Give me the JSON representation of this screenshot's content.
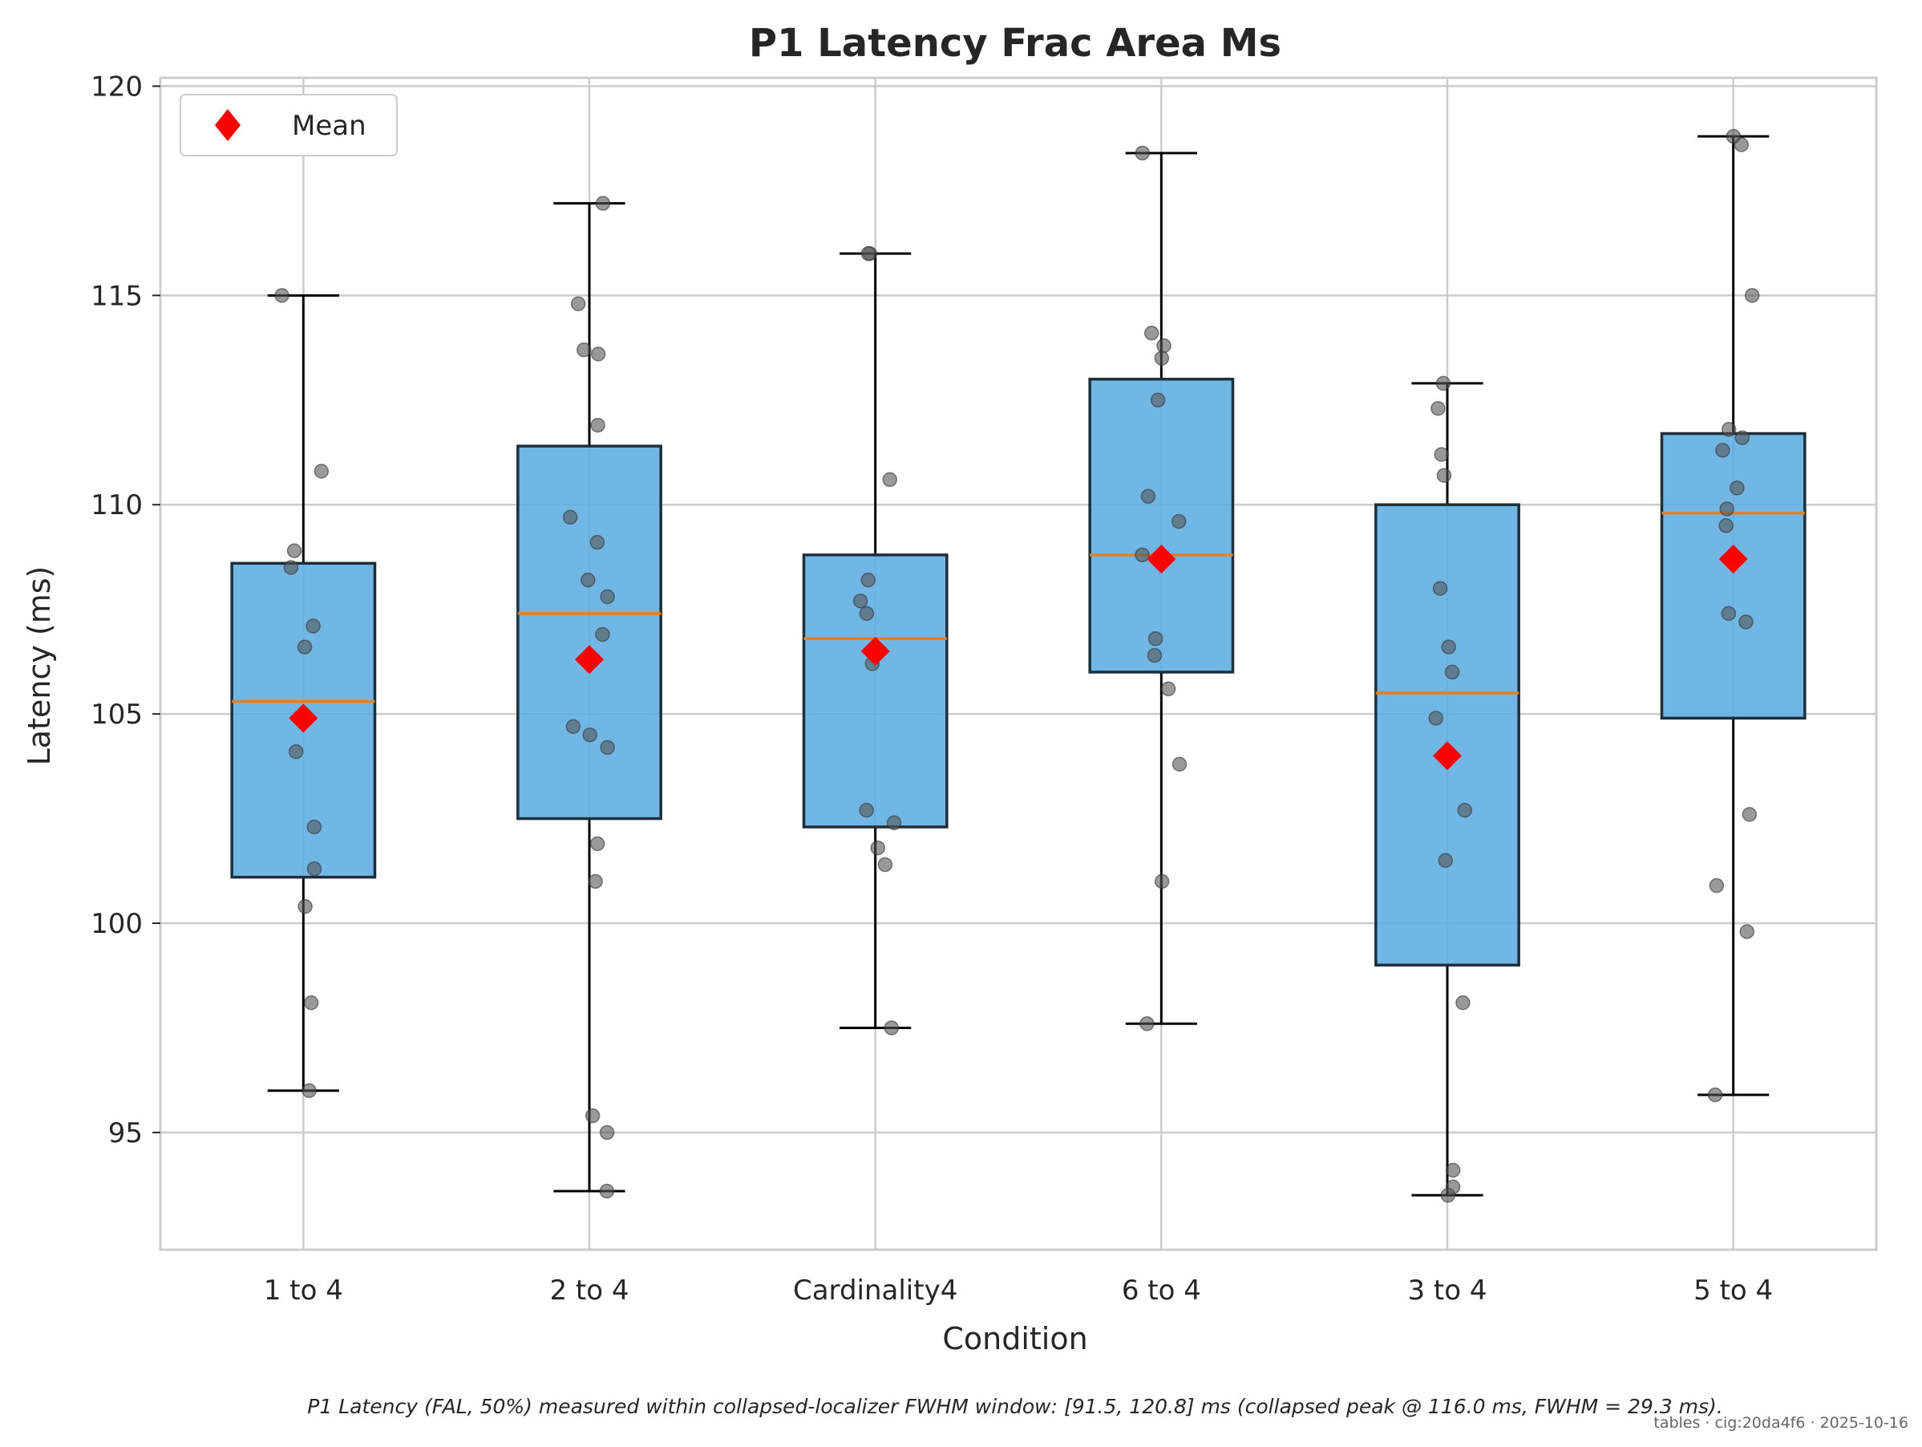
{
  "chart_data": {
    "type": "box",
    "title": "P1 Latency Frac Area Ms",
    "xlabel": "Condition",
    "ylabel": "Latency (ms)",
    "ylim": [
      92.2,
      120.2
    ],
    "yticks": [
      95,
      100,
      105,
      110,
      115,
      120
    ],
    "grid": true,
    "legend": {
      "position": "top-left",
      "entries": [
        {
          "label": "Mean",
          "marker": "diamond",
          "color": "#ff0000"
        }
      ]
    },
    "colors": {
      "box_fill": "#5dade2",
      "box_edge": "#1f2f3a",
      "median": "#e67e22",
      "whisker": "#000000",
      "mean": "#ff0000",
      "point": "#555555",
      "grid": "#cccccc"
    },
    "categories": [
      "1 to 4",
      "2 to 4",
      "Cardinality4",
      "6 to 4",
      "3 to 4",
      "5 to 4"
    ],
    "boxes": [
      {
        "category": "1 to 4",
        "whislo": 96.0,
        "q1": 101.1,
        "med": 105.3,
        "q3": 108.6,
        "whishi": 115.0,
        "mean": 104.9,
        "points": [
          115.0,
          110.8,
          108.9,
          108.5,
          107.1,
          106.6,
          104.1,
          102.3,
          101.3,
          100.4,
          98.1,
          96.0
        ]
      },
      {
        "category": "2 to 4",
        "whislo": 93.6,
        "q1": 102.5,
        "med": 107.4,
        "q3": 111.4,
        "whishi": 117.2,
        "mean": 106.3,
        "points": [
          117.2,
          114.8,
          113.7,
          113.6,
          111.9,
          109.7,
          109.1,
          108.2,
          107.8,
          106.9,
          104.7,
          104.5,
          104.2,
          101.9,
          101.0,
          95.4,
          95.0,
          93.6
        ]
      },
      {
        "category": "Cardinality4",
        "whislo": 97.5,
        "q1": 102.3,
        "med": 106.8,
        "q3": 108.8,
        "whishi": 116.0,
        "mean": 106.5,
        "points": [
          116.0,
          116.0,
          110.6,
          108.2,
          107.7,
          107.4,
          106.2,
          102.7,
          102.4,
          101.8,
          101.4,
          97.5
        ]
      },
      {
        "category": "6 to 4",
        "whislo": 97.6,
        "q1": 106.0,
        "med": 108.8,
        "q3": 113.0,
        "whishi": 118.4,
        "mean": 108.7,
        "points": [
          118.4,
          114.1,
          113.8,
          113.5,
          112.5,
          110.2,
          109.6,
          108.8,
          106.8,
          106.4,
          105.6,
          103.8,
          101.0,
          97.6
        ]
      },
      {
        "category": "3 to 4",
        "whislo": 93.5,
        "q1": 99.0,
        "med": 105.5,
        "q3": 110.0,
        "whishi": 112.9,
        "mean": 104.0,
        "points": [
          112.9,
          112.3,
          111.2,
          110.7,
          108.0,
          106.6,
          106.0,
          104.9,
          102.7,
          101.5,
          98.1,
          94.1,
          93.7,
          93.5
        ]
      },
      {
        "category": "5 to 4",
        "whislo": 95.9,
        "q1": 104.9,
        "med": 109.8,
        "q3": 111.7,
        "whishi": 118.8,
        "mean": 108.7,
        "points": [
          118.8,
          118.6,
          115.0,
          111.8,
          111.6,
          111.3,
          110.4,
          109.9,
          109.5,
          107.4,
          107.2,
          102.6,
          100.9,
          99.8,
          95.9
        ]
      }
    ]
  },
  "caption": "P1 Latency (FAL, 50%) measured within collapsed-localizer FWHM window: [91.5, 120.8] ms (collapsed peak @ 116.0 ms, FWHM = 29.3 ms).",
  "footer_meta": "tables · cig:20da4f6 · 2025-10-16"
}
